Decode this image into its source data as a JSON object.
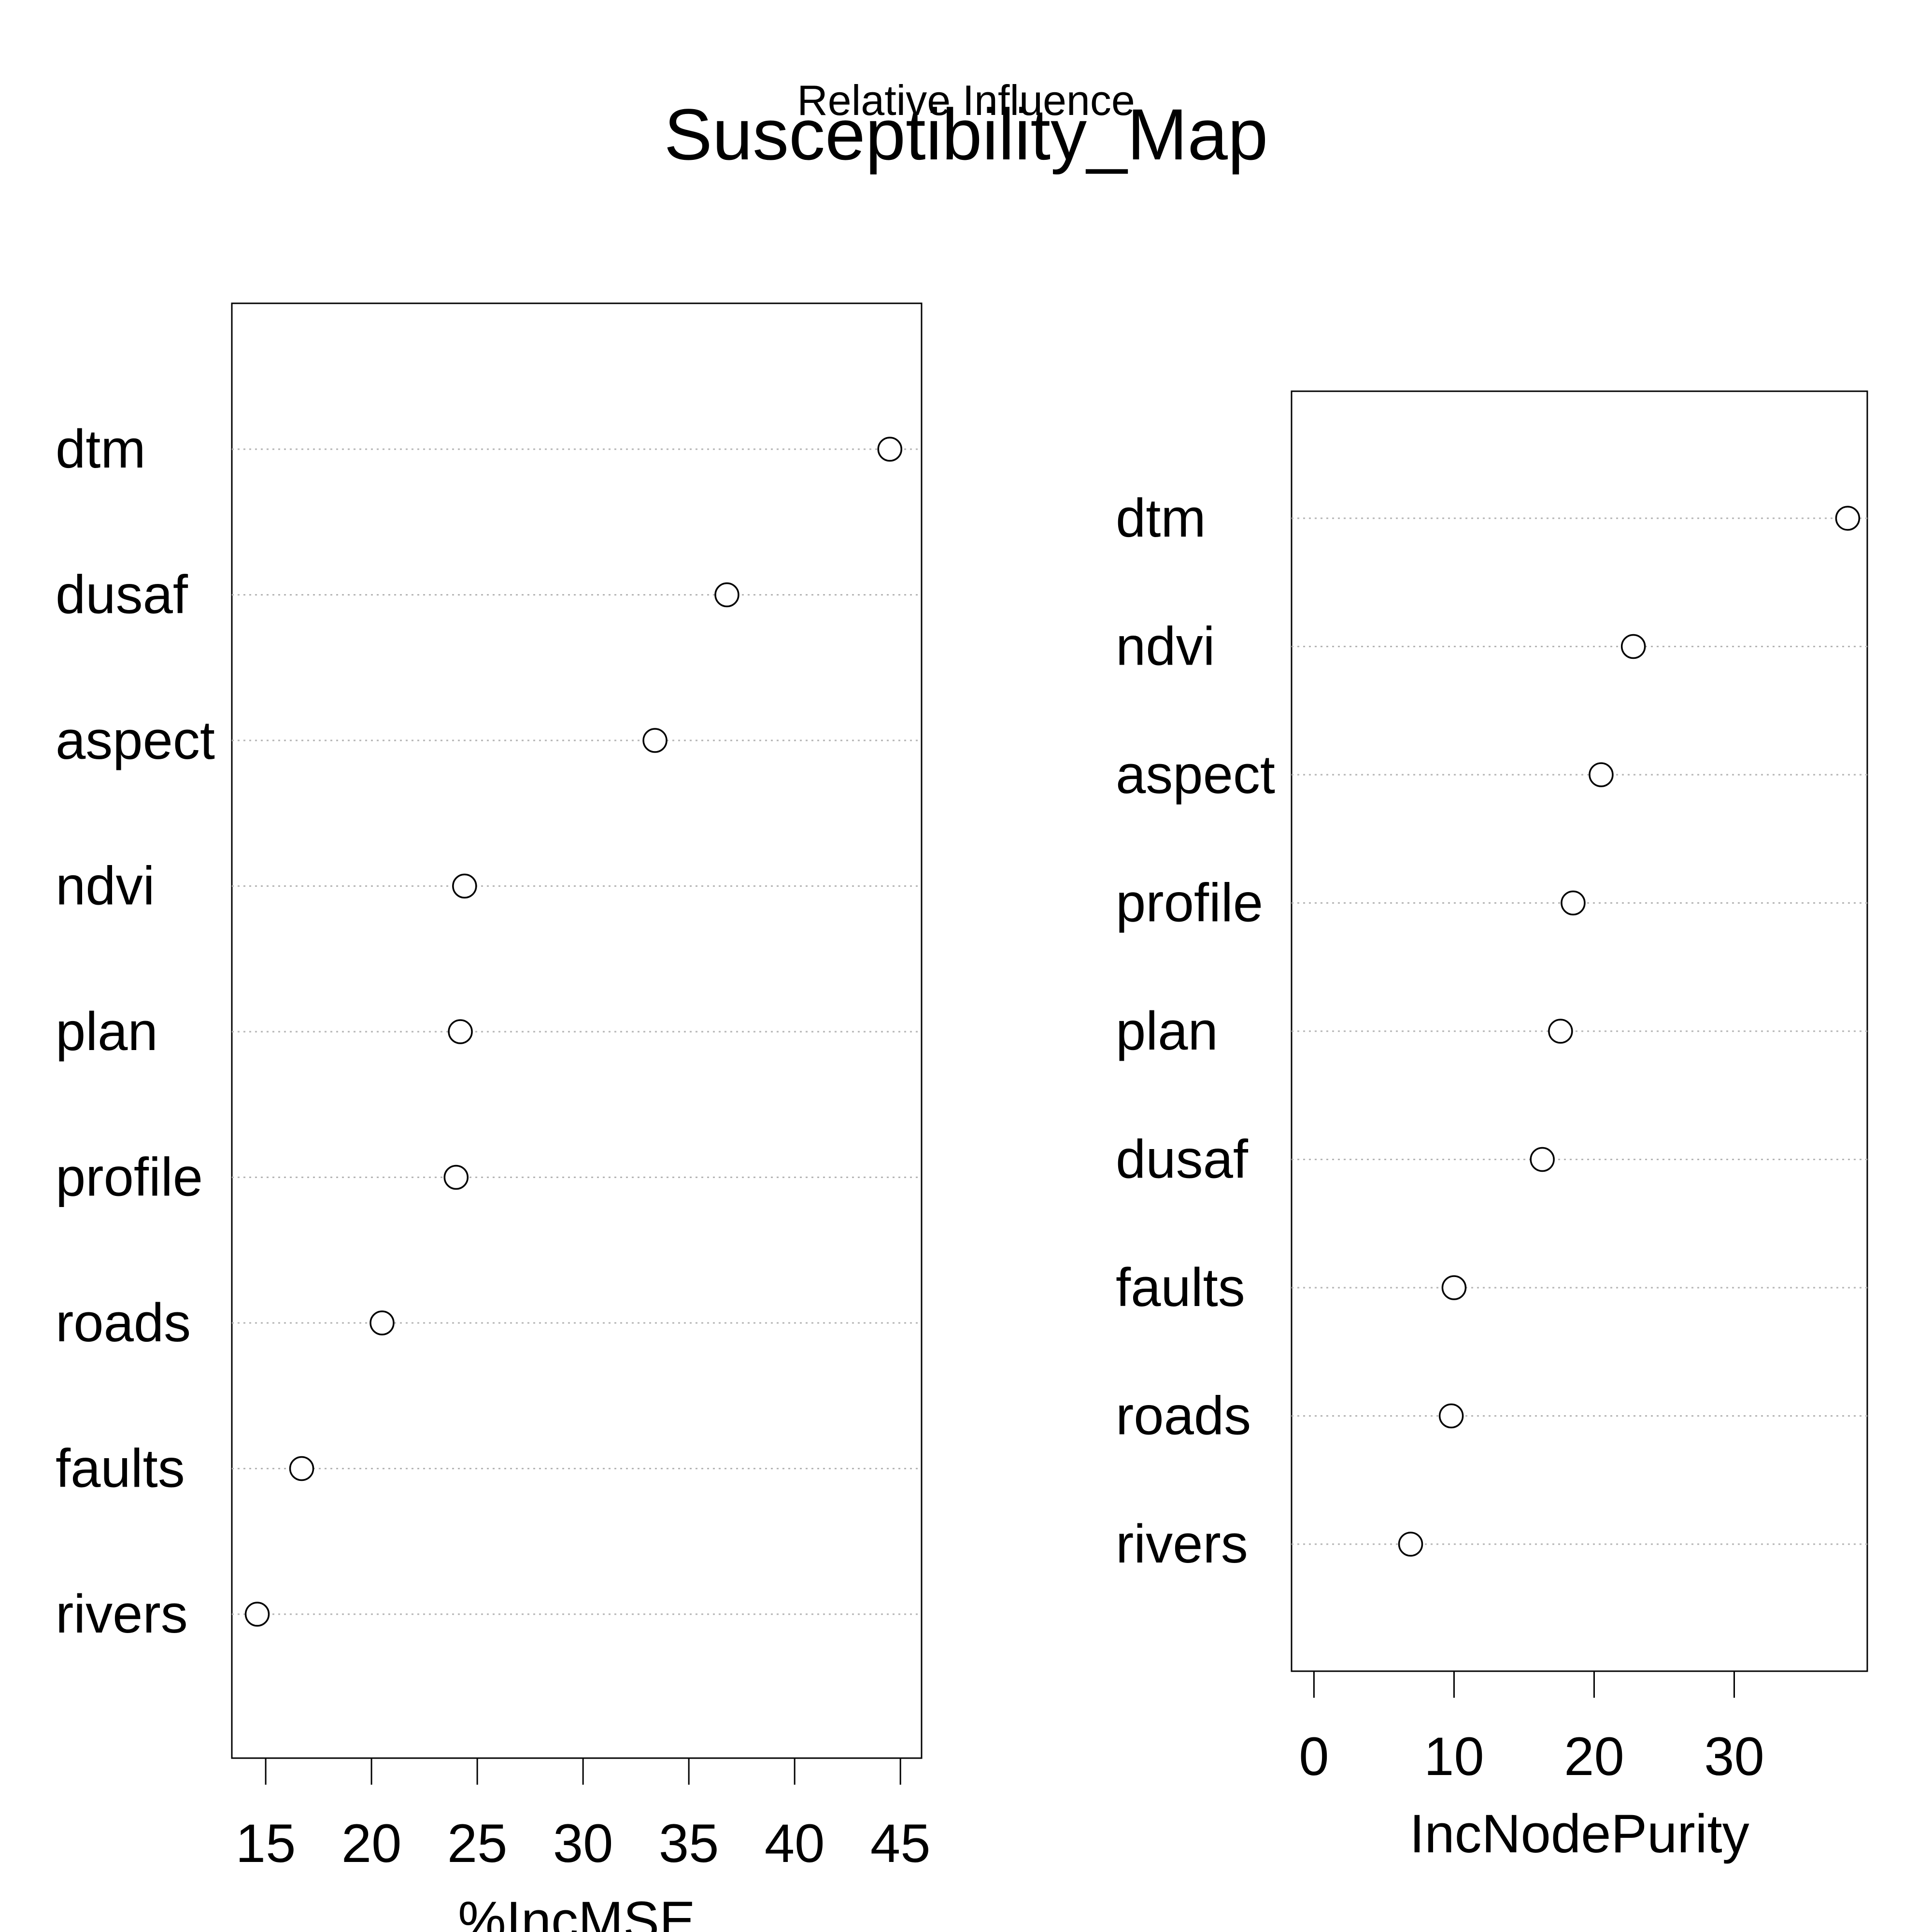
{
  "overtitle": "Relative Influence",
  "title": "Susceptibility_Map",
  "chart_data": [
    {
      "type": "scatter",
      "xlabel": "%IncMSE",
      "ylabel": "",
      "xlim": [
        13.4,
        46.0
      ],
      "ticks": [
        15,
        20,
        25,
        30,
        35,
        40,
        45
      ],
      "categories": [
        "dtm",
        "dusaf",
        "aspect",
        "ndvi",
        "plan",
        "profile",
        "roads",
        "faults",
        "rivers"
      ],
      "values": [
        44.5,
        36.8,
        33.4,
        24.4,
        24.2,
        24.0,
        20.5,
        16.7,
        14.6
      ],
      "grid": "dotted horizontal lines",
      "marker": "open circle"
    },
    {
      "type": "scatter",
      "xlabel": "IncNodePurity",
      "ylabel": "",
      "xlim": [
        -1.6,
        39.5
      ],
      "ticks": [
        0,
        10,
        20,
        30
      ],
      "categories": [
        "dtm",
        "ndvi",
        "aspect",
        "profile",
        "plan",
        "dusaf",
        "faults",
        "roads",
        "rivers"
      ],
      "values": [
        38.1,
        22.8,
        20.5,
        18.5,
        17.6,
        16.3,
        10.0,
        9.8,
        6.9
      ],
      "grid": "dotted horizontal lines",
      "marker": "open circle"
    }
  ]
}
